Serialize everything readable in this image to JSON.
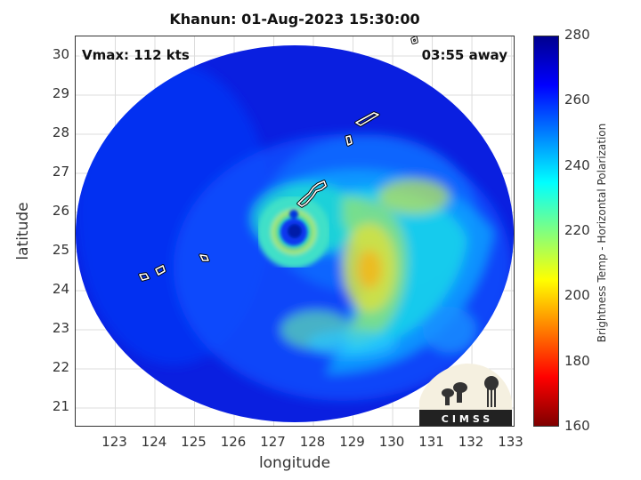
{
  "title": "Khanun: 01-Aug-2023 15:30:00",
  "vmax": "Vmax: 112 kts",
  "time_away": "03:55 away",
  "x_axis": {
    "label": "longitude",
    "range": [
      122,
      133.1
    ],
    "ticks": [
      "123",
      "124",
      "125",
      "126",
      "127",
      "128",
      "129",
      "130",
      "131",
      "132",
      "133"
    ]
  },
  "y_axis": {
    "label": "latitude",
    "range": [
      20.5,
      30.5
    ],
    "ticks": [
      "30",
      "29",
      "28",
      "27",
      "26",
      "25",
      "24",
      "23",
      "22",
      "21"
    ]
  },
  "colorbar": {
    "label": "Brightness Temp - Horizontal Polarization",
    "range": [
      160,
      280
    ],
    "ticks": [
      "280",
      "260",
      "240",
      "220",
      "200",
      "180",
      "160"
    ],
    "colors": [
      "#7f0000",
      "#ff0000",
      "#ff8000",
      "#ffff00",
      "#80ff80",
      "#00ffff",
      "#0080ff",
      "#0000ff",
      "#00008f"
    ]
  },
  "storm": {
    "name": "Khanun",
    "eye_center": {
      "lon": 127.6,
      "lat": 25.5
    }
  },
  "logo": {
    "text": "CIMSS"
  }
}
